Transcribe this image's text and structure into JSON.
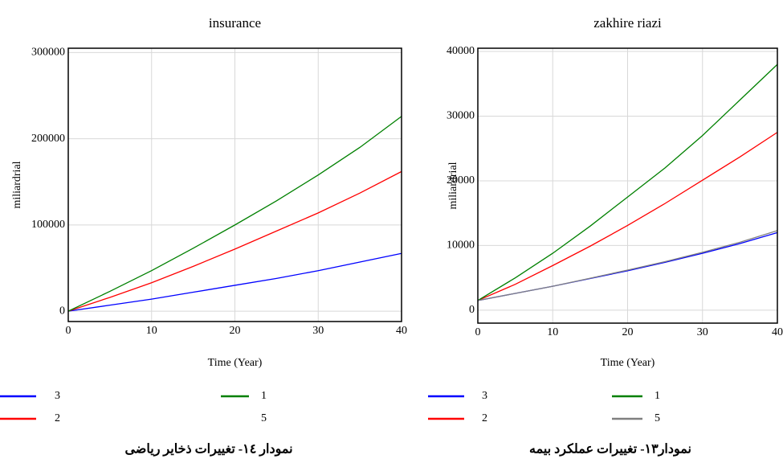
{
  "chart_data": [
    {
      "type": "line",
      "title": "insurance",
      "x_label": "Time (Year)",
      "y_label": "miliardrial",
      "caption": "نمودار ١٤- تغییرات ذخایر ریاضی",
      "x": [
        0,
        5,
        10,
        15,
        20,
        25,
        30,
        35,
        40
      ],
      "xlim": [
        0,
        40
      ],
      "xticks": [
        0,
        10,
        20,
        30,
        40
      ],
      "ylim": [
        -12000,
        305000
      ],
      "yticks": [
        0,
        100000,
        200000,
        300000
      ],
      "grid": true,
      "series": [
        {
          "name": "3",
          "color": "#0000ff",
          "values": [
            0,
            7000,
            14000,
            22000,
            30000,
            38000,
            47000,
            57000,
            67000
          ]
        },
        {
          "name": "2",
          "color": "#ff0000",
          "values": [
            0,
            16000,
            33000,
            52000,
            72000,
            93000,
            114000,
            137000,
            162000
          ]
        },
        {
          "name": "1",
          "color": "#008000",
          "values": [
            0,
            23000,
            47000,
            73000,
            100000,
            128000,
            158000,
            190000,
            226000
          ]
        },
        {
          "name": "5",
          "color": "#ffffff",
          "values": [
            null,
            null,
            null,
            null,
            null,
            null,
            null,
            null,
            null
          ]
        }
      ]
    },
    {
      "type": "line",
      "title": "zakhire riazi",
      "x_label": "Time (Year)",
      "y_label": "miliardrial",
      "caption": "نمودار١٣- تغییرات عملکرد بیمه",
      "x": [
        0,
        5,
        10,
        15,
        20,
        25,
        30,
        35,
        40
      ],
      "xlim": [
        0,
        40
      ],
      "xticks": [
        0,
        10,
        20,
        30,
        40
      ],
      "ylim": [
        -2000,
        40500
      ],
      "yticks": [
        0,
        10000,
        20000,
        30000,
        40000
      ],
      "grid": true,
      "series": [
        {
          "name": "3",
          "color": "#0000ff",
          "values": [
            1500,
            2600,
            3700,
            4900,
            6100,
            7400,
            8800,
            10300,
            12000
          ]
        },
        {
          "name": "2",
          "color": "#ff0000",
          "values": [
            1500,
            4000,
            6900,
            9900,
            13100,
            16500,
            20100,
            23700,
            27500
          ]
        },
        {
          "name": "1",
          "color": "#008000",
          "values": [
            1500,
            5000,
            8800,
            13000,
            17500,
            22000,
            27000,
            32500,
            38000
          ]
        },
        {
          "name": "5",
          "color": "#808080",
          "values": [
            1500,
            2600,
            3700,
            4950,
            6200,
            7500,
            8950,
            10500,
            12300
          ]
        }
      ]
    }
  ]
}
